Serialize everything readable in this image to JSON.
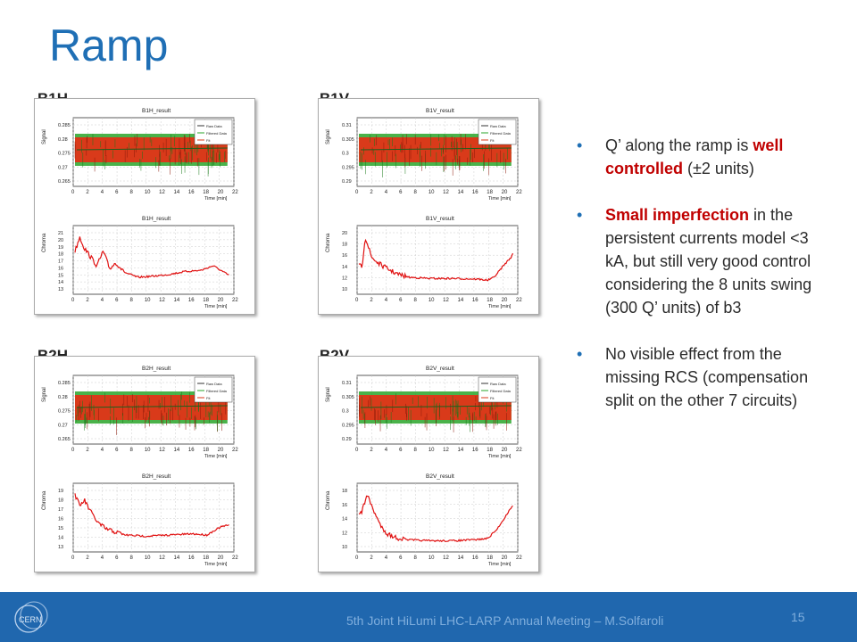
{
  "slide": {
    "title": "Ramp",
    "page_number": "15",
    "footer": "5th Joint HiLumi LHC-LARP Annual Meeting – M.Solfaroli",
    "logo_text": "CERN"
  },
  "panels": [
    {
      "label": "B1H",
      "top_title": "B1H_result",
      "bottom_title": "B1H_result",
      "signal_ticks": [
        "0.285",
        "0.28",
        "0.275",
        "0.27",
        "0.265"
      ],
      "chroma_ticks": [
        "21",
        "20",
        "19",
        "18",
        "17",
        "16",
        "15",
        "14",
        "13"
      ]
    },
    {
      "label": "B1V",
      "top_title": "B1V_result",
      "bottom_title": "B1V_result",
      "signal_ticks": [
        "0.31",
        "0.305",
        "0.3",
        "0.295",
        "0.29"
      ],
      "chroma_ticks": [
        "20",
        "18",
        "16",
        "14",
        "12",
        "10"
      ]
    },
    {
      "label": "B2H",
      "top_title": "B2H_result",
      "bottom_title": "B2H_result",
      "signal_ticks": [
        "0.285",
        "0.28",
        "0.275",
        "0.27",
        "0.265"
      ],
      "chroma_ticks": [
        "19",
        "18",
        "17",
        "16",
        "15",
        "14",
        "13"
      ]
    },
    {
      "label": "B2V",
      "top_title": "B2V_result",
      "bottom_title": "B2V_result",
      "signal_ticks": [
        "0.31",
        "0.305",
        "0.3",
        "0.295",
        "0.29"
      ],
      "chroma_ticks": [
        "18",
        "16",
        "14",
        "12",
        "10"
      ]
    }
  ],
  "plot_common": {
    "y_top_label": "Signal",
    "y_bottom_label": "Chroma",
    "x_label": "Time [min]",
    "x_ticks": [
      "0",
      "2",
      "4",
      "6",
      "8",
      "10",
      "12",
      "14",
      "16",
      "18",
      "20",
      "22"
    ],
    "legend": [
      "Raw Data",
      "Filtered Data",
      "Fit"
    ]
  },
  "bullets": [
    {
      "parts": [
        {
          "text": "Q’ along the ramp is "
        },
        {
          "text": "well controlled",
          "red": true
        },
        {
          "text": " (±2 units)"
        }
      ]
    },
    {
      "parts": [
        {
          "text": "Small imperfection",
          "red": true
        },
        {
          "text": " in the persistent currents model <3 kA, but still very good control considering the 8 units swing (300 Q’ units) of b3"
        }
      ]
    },
    {
      "parts": [
        {
          "text": "No visible effect from the missing RCS (compensation split on the other 7 circuits)"
        }
      ]
    }
  ],
  "colors": {
    "title": "#1f6fb5",
    "footer_bg": "#2067ae",
    "highlight": "#c00000",
    "signal_fill": "#d93a1a",
    "signal_edge": "#2aa52a",
    "chroma_line": "#e01010"
  }
}
